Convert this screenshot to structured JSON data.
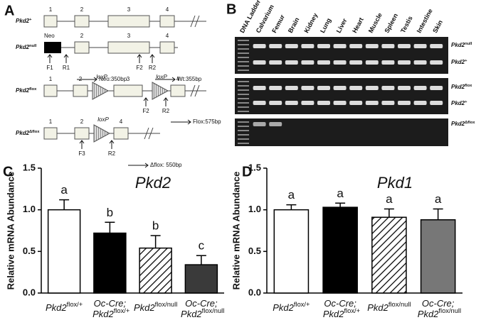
{
  "panel_a": {
    "letter": "A",
    "rows": [
      "Pkd2+",
      "Pkd2null",
      "Pkd2flox",
      "Pkd2Δflox"
    ],
    "exon_numbers": [
      "1",
      "2",
      "3",
      "4",
      "2",
      "3",
      "4",
      "1",
      "2",
      "3",
      "4",
      "1",
      "2",
      "4"
    ],
    "neo": "Neo",
    "primers": [
      "F1",
      "R1",
      "F2",
      "R2",
      "F2",
      "R2",
      "F3",
      "R2"
    ],
    "lox": [
      "loxP",
      "loxP",
      "loxP"
    ],
    "products": [
      "Neo:350bp",
      "Wt:355bp",
      "Flox:575bp",
      "Δflox: 550bp"
    ]
  },
  "panel_b": {
    "letter": "B",
    "lanes": [
      "DNA Ladder",
      "Calvarium",
      "Femur",
      "Brain",
      "Kidney",
      "Lung",
      "Liver",
      "Heart",
      "Muscle",
      "Spleen",
      "Testis",
      "Intestine",
      "Skin"
    ],
    "band_labels": [
      "Pkd2null",
      "Pkd2+",
      "Pkd2flox",
      "Pkd2+",
      "Pkd2Δflox"
    ]
  },
  "chart_data": [
    {
      "type": "bar",
      "panel_label": "C",
      "title": "Pkd2",
      "ylabel": "Relative mRNA Abundance",
      "categories": [
        "Pkd2flox/+",
        "Oc-Cre; Pkd2flox/+",
        "Pkd2flox/null",
        "Oc-Cre; Pkd2flox/null"
      ],
      "values": [
        1.0,
        0.72,
        0.54,
        0.34
      ],
      "errors": [
        0.12,
        0.13,
        0.15,
        0.11
      ],
      "annotations": [
        "a",
        "b",
        "b",
        "c"
      ],
      "fills": [
        "#ffffff",
        "#000000",
        "hatch",
        "#3a3a3a"
      ],
      "ylim": [
        0,
        1.5
      ],
      "yticks": [
        {
          "value": 0,
          "label": "0.0"
        },
        0.5,
        {
          "value": 1,
          "label": "1.0"
        },
        1.5
      ]
    },
    {
      "type": "bar",
      "panel_label": "D",
      "title": "Pkd1",
      "ylabel": "Relative mRNA Abundance",
      "categories": [
        "Pkd2flox/+",
        "Oc-Cre; Pkd2flox/+",
        "Pkd2flox/null",
        "Oc-Cre; Pkd2flox/null"
      ],
      "values": [
        1.0,
        1.03,
        0.91,
        0.88
      ],
      "errors": [
        0.06,
        0.05,
        0.1,
        0.13
      ],
      "annotations": [
        "a",
        "a",
        "a",
        "a"
      ],
      "fills": [
        "#ffffff",
        "#000000",
        "hatch",
        "#777777"
      ],
      "ylim": [
        0,
        1.5
      ],
      "yticks": [
        {
          "value": 0,
          "label": "0.0"
        },
        0.5,
        {
          "value": 1,
          "label": "1.0"
        },
        1.5
      ]
    }
  ]
}
